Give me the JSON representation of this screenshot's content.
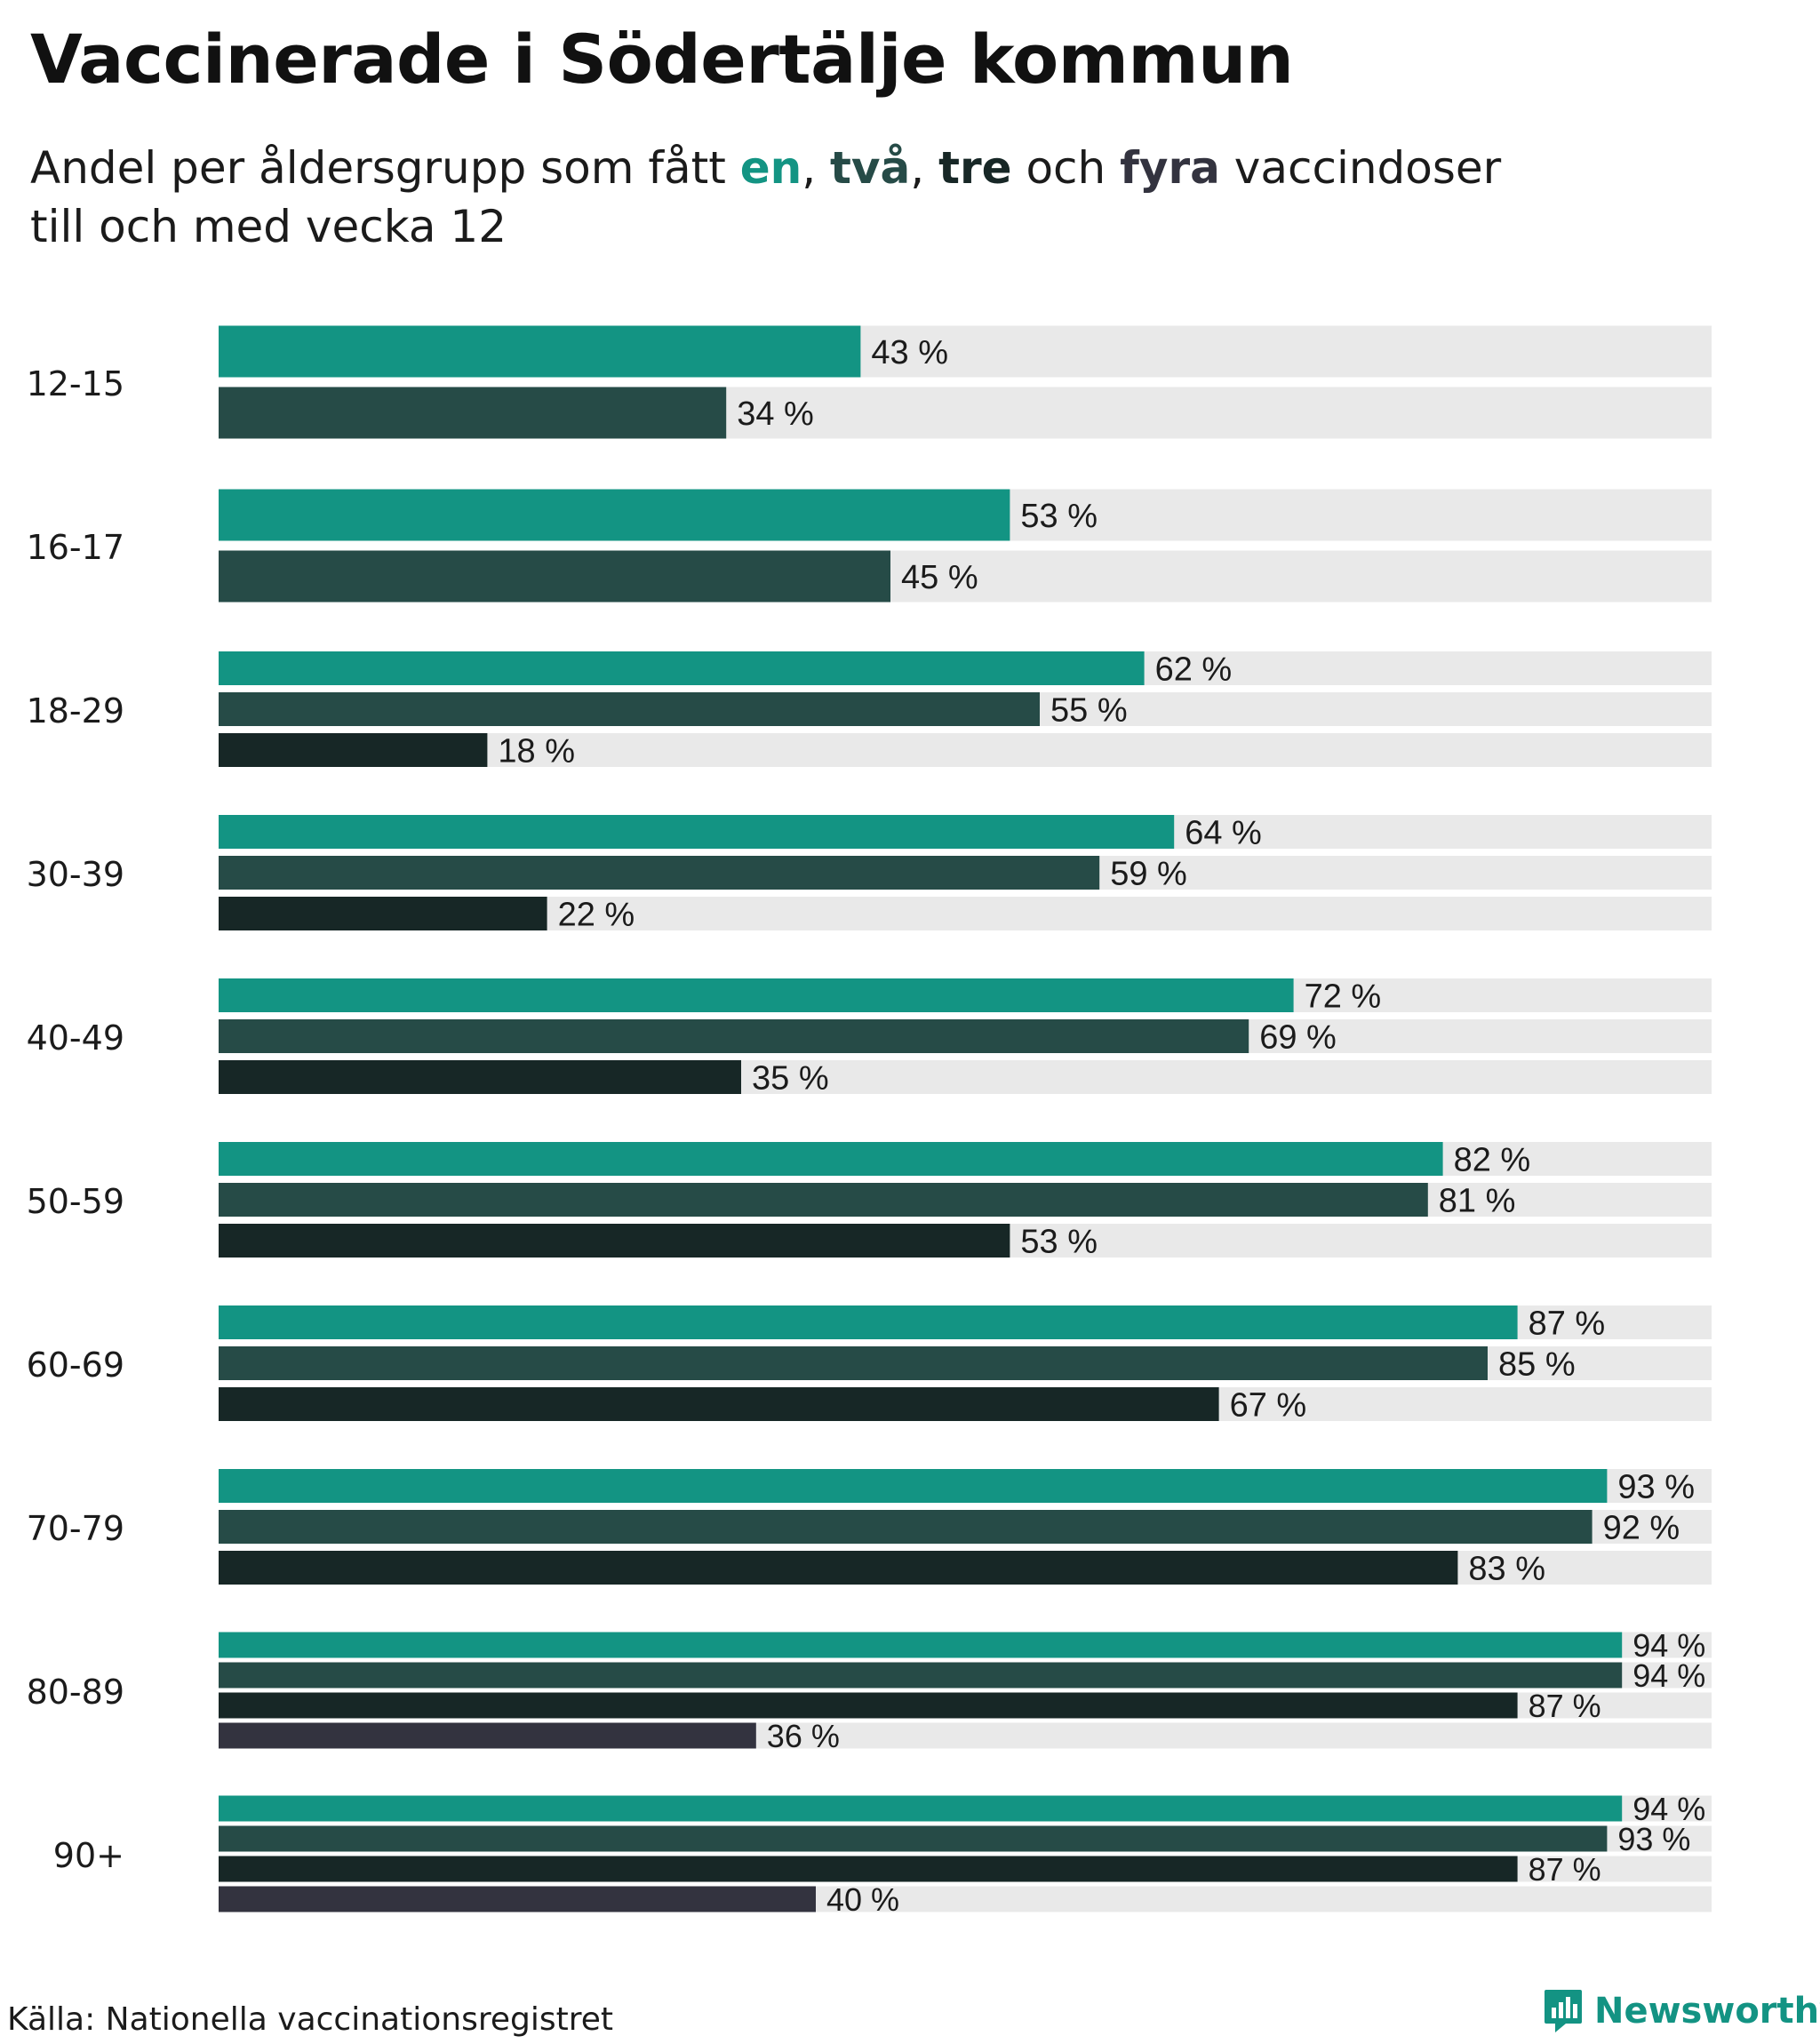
{
  "chart_data": {
    "type": "bar",
    "orientation": "horizontal",
    "title": "Vaccinerade i Södertälje kommun",
    "subtitle": {
      "prefix": "Andel per åldersgrupp som fått ",
      "dose1": "en",
      "sep1": ", ",
      "dose2": "två",
      "sep2": ", ",
      "dose3": "tre",
      "conj": " och ",
      "dose4": "fyra",
      "suffix": " vaccindoser",
      "line2": "till och med vecka 12"
    },
    "value_suffix": " %",
    "xlim": [
      0,
      100
    ],
    "series_colors": [
      "#139483",
      "#264b47",
      "#172726",
      "#33333f"
    ],
    "track_color": "#e9e9e9",
    "groups": [
      {
        "label": "12-15",
        "values": [
          43,
          34
        ]
      },
      {
        "label": "16-17",
        "values": [
          53,
          45
        ]
      },
      {
        "label": "18-29",
        "values": [
          62,
          55,
          18
        ]
      },
      {
        "label": "30-39",
        "values": [
          64,
          59,
          22
        ]
      },
      {
        "label": "40-49",
        "values": [
          72,
          69,
          35
        ]
      },
      {
        "label": "50-59",
        "values": [
          82,
          81,
          53
        ]
      },
      {
        "label": "60-69",
        "values": [
          87,
          85,
          67
        ]
      },
      {
        "label": "70-79",
        "values": [
          93,
          92,
          83
        ]
      },
      {
        "label": "80-89",
        "values": [
          94,
          94,
          87,
          36
        ]
      },
      {
        "label": "90+",
        "values": [
          94,
          93,
          87,
          40
        ]
      }
    ]
  },
  "footer": {
    "source": "Källa: Nationella vaccinationsregistret",
    "brand": "Newsworthy"
  },
  "colors": {
    "accent": "#139383",
    "text": "#1b1b1b"
  },
  "icons": {
    "brand_logo": "newsworthy-logo-icon"
  }
}
